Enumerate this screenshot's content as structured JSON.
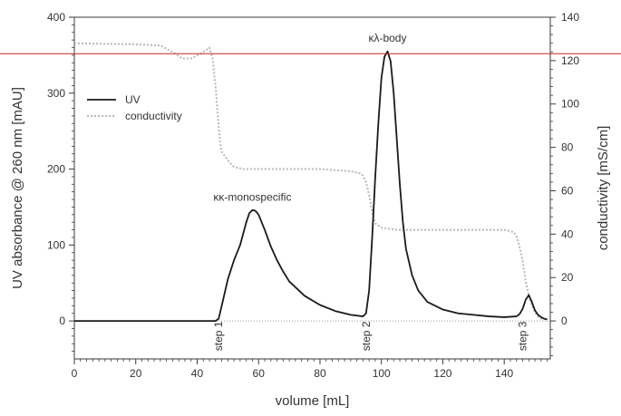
{
  "chart_data": {
    "type": "line",
    "xlabel": "volume [mL]",
    "ylabel": "UV absorbance @ 260 nm [mAU]",
    "y2label": "conductivity [mS/cm]",
    "xlim": [
      0,
      155
    ],
    "ylim": [
      -50,
      400
    ],
    "y2lim": [
      -17.5,
      140
    ],
    "x_ticks": [
      0,
      20,
      40,
      60,
      80,
      100,
      120,
      140
    ],
    "y_ticks": [
      0,
      100,
      200,
      300,
      400
    ],
    "y2_ticks": [
      0,
      20,
      40,
      60,
      80,
      100,
      120,
      140
    ],
    "legend": {
      "position": "top-left",
      "entries": [
        "UV",
        "conductivity"
      ]
    },
    "series": [
      {
        "name": "UV",
        "axis": "left",
        "color": "#1a1a1a",
        "x": [
          0,
          44,
          46,
          47,
          48,
          50,
          52,
          54,
          56,
          57,
          58,
          59,
          60,
          62,
          64,
          66,
          68,
          70,
          75,
          80,
          85,
          90,
          94,
          95,
          96,
          97,
          98,
          99,
          100,
          101,
          102,
          103,
          104,
          105,
          106,
          107,
          108,
          110,
          112,
          115,
          120,
          125,
          130,
          135,
          140,
          144,
          145,
          146,
          147,
          148,
          149,
          150,
          151,
          152,
          153,
          154
        ],
        "values": [
          0,
          0,
          0,
          3,
          20,
          55,
          80,
          100,
          130,
          142,
          146,
          145,
          140,
          120,
          98,
          80,
          65,
          52,
          33,
          21,
          13,
          8,
          6,
          10,
          40,
          110,
          190,
          260,
          320,
          348,
          355,
          342,
          300,
          240,
          180,
          130,
          95,
          60,
          40,
          25,
          15,
          10,
          8,
          6,
          5,
          6,
          9,
          16,
          28,
          34,
          25,
          14,
          8,
          5,
          3,
          2
        ]
      },
      {
        "name": "conductivity",
        "axis": "right",
        "color": "#b8b8b8",
        "x": [
          0,
          20,
          28,
          32,
          35,
          38,
          41,
          43,
          44,
          45,
          46,
          47,
          47.5,
          48,
          50,
          52,
          55,
          60,
          70,
          80,
          90,
          93,
          94,
          95,
          96,
          97,
          98,
          100,
          105,
          120,
          140,
          143,
          144,
          145,
          146,
          147,
          148,
          149,
          150,
          151,
          152,
          153
        ],
        "values": [
          128,
          127.5,
          127,
          124,
          121,
          121,
          123,
          125,
          126,
          121,
          108,
          90,
          82,
          78,
          74,
          71,
          70,
          70,
          70,
          70,
          69,
          68,
          67,
          64,
          58,
          50,
          45,
          43,
          42,
          42,
          42,
          41,
          39,
          34,
          28,
          18,
          12,
          7,
          4,
          2,
          1,
          0.5
        ]
      }
    ],
    "annotations": [
      {
        "text": "κκ-monospecific",
        "x": 58,
        "y": 158
      },
      {
        "text": "κλ-body",
        "x": 102,
        "y": 368
      },
      {
        "text": "step 1",
        "x": 47,
        "y": -20
      },
      {
        "text": "step 2",
        "x": 95,
        "y": -20
      },
      {
        "text": "step 3",
        "x": 146,
        "y": -20
      }
    ],
    "reference_lines": [
      {
        "axis": "left",
        "y": 352,
        "color": "#cc2222"
      }
    ],
    "grid": false
  }
}
